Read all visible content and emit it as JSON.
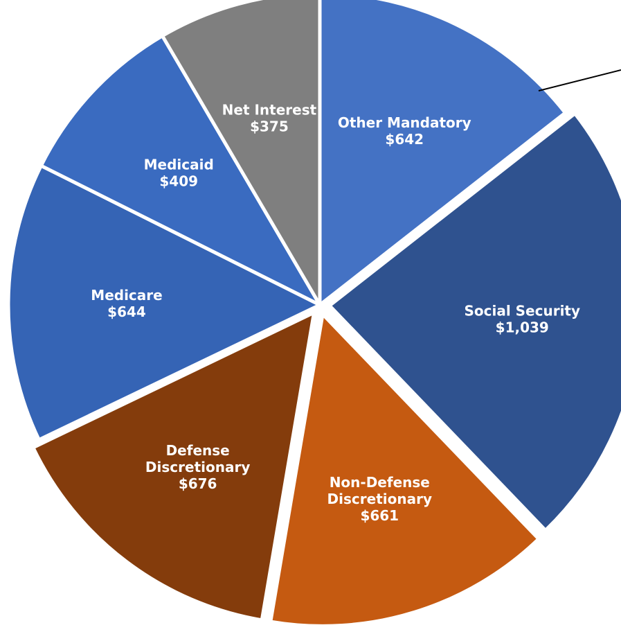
{
  "chart_data": {
    "type": "pie",
    "title": "",
    "unit_prefix": "$",
    "slices": [
      {
        "label": [
          "Other Mandatory"
        ],
        "value_text": "$642",
        "value": 642,
        "color": "#4472C4",
        "text_color": "#ffffff"
      },
      {
        "label": [
          "Social Security"
        ],
        "value_text": "$1,039",
        "value": 1039,
        "color": "#2F528F",
        "text_color": "#ffffff"
      },
      {
        "label": [
          "Non-Defense",
          "Discretionary"
        ],
        "value_text": "$661",
        "value": 661,
        "color": "#C55A11",
        "text_color": "#ffffff"
      },
      {
        "label": [
          "Defense",
          "Discretionary"
        ],
        "value_text": "$676",
        "value": 676,
        "color": "#843C0C",
        "text_color": "#ffffff"
      },
      {
        "label": [
          "Medicare"
        ],
        "value_text": "$644",
        "value": 644,
        "color": "#3564B5",
        "text_color": "#ffffff"
      },
      {
        "label": [
          "Medicaid"
        ],
        "value_text": "$409",
        "value": 409,
        "color": "#3A6BC0",
        "text_color": "#ffffff"
      },
      {
        "label": [
          "Net Interest"
        ],
        "value_text": "$375",
        "value": 375,
        "color": "#7F7F7F",
        "text_color": "#ffffff"
      }
    ],
    "start_angle_deg": 0,
    "direction": "clockwise",
    "separator_color": "#ffffff",
    "exploded_slices": [
      "Social Security",
      "Non-Defense Discretionary",
      "Defense Discretionary"
    ],
    "leader_line": true
  }
}
